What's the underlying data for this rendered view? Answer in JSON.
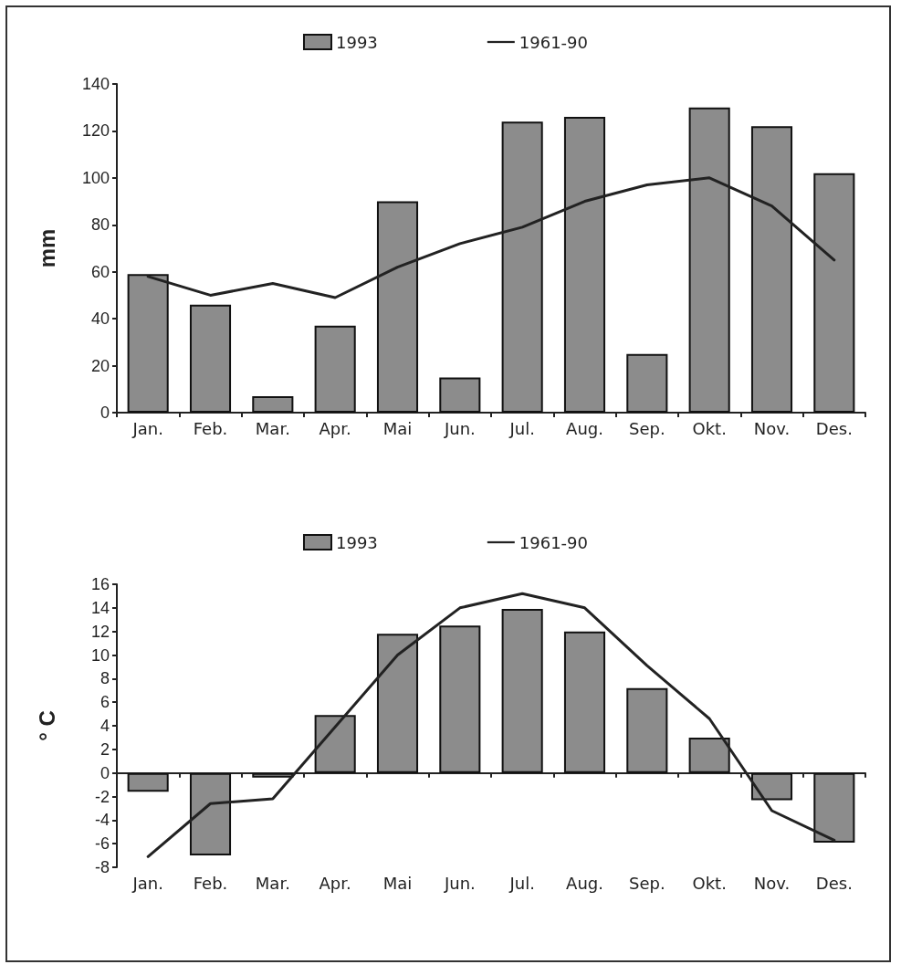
{
  "chart_data": [
    {
      "type": "bar",
      "ylabel": "mm",
      "categories": [
        "Jan.",
        "Feb.",
        "Mar.",
        "Apr.",
        "Mai",
        "Jun.",
        "Jul.",
        "Aug.",
        "Sep.",
        "Okt.",
        "Nov.",
        "Des."
      ],
      "series": [
        {
          "name": "1993",
          "color": "#8c8c8c",
          "values": [
            59,
            46,
            7,
            37,
            90,
            15,
            124,
            126,
            25,
            130,
            122,
            102
          ]
        },
        {
          "name": "1961-90",
          "type": "line",
          "color": "#222222",
          "values": [
            58,
            50,
            55,
            49,
            62,
            72,
            79,
            90,
            97,
            100,
            88,
            65
          ]
        }
      ],
      "ylim": [
        0,
        140
      ],
      "yticks": [
        0,
        20,
        40,
        60,
        80,
        100,
        120,
        140
      ],
      "legend": "top",
      "marker": "none"
    },
    {
      "type": "bar",
      "ylabel": "° C",
      "categories": [
        "Jan.",
        "Feb.",
        "Mar.",
        "Apr.",
        "Mai",
        "Jun.",
        "Jul.",
        "Aug.",
        "Sep.",
        "Okt.",
        "Nov.",
        "Des."
      ],
      "series": [
        {
          "name": "1993",
          "color": "#8c8c8c",
          "values": [
            -1.6,
            -7.0,
            -0.4,
            4.9,
            11.8,
            12.5,
            13.9,
            12.0,
            7.2,
            3.0,
            -2.3,
            -5.9
          ]
        },
        {
          "name": "1961-90",
          "type": "line",
          "color": "#222222",
          "values": [
            -7.1,
            -2.6,
            -2.2,
            3.9,
            10.0,
            14.0,
            15.2,
            14.0,
            9.1,
            4.6,
            -3.2,
            -5.7
          ]
        }
      ],
      "ylim": [
        -8,
        16
      ],
      "yticks": [
        -8,
        -6,
        -4,
        -2,
        0,
        2,
        4,
        6,
        8,
        10,
        12,
        14,
        16
      ],
      "legend": "top",
      "marker": "none"
    }
  ]
}
